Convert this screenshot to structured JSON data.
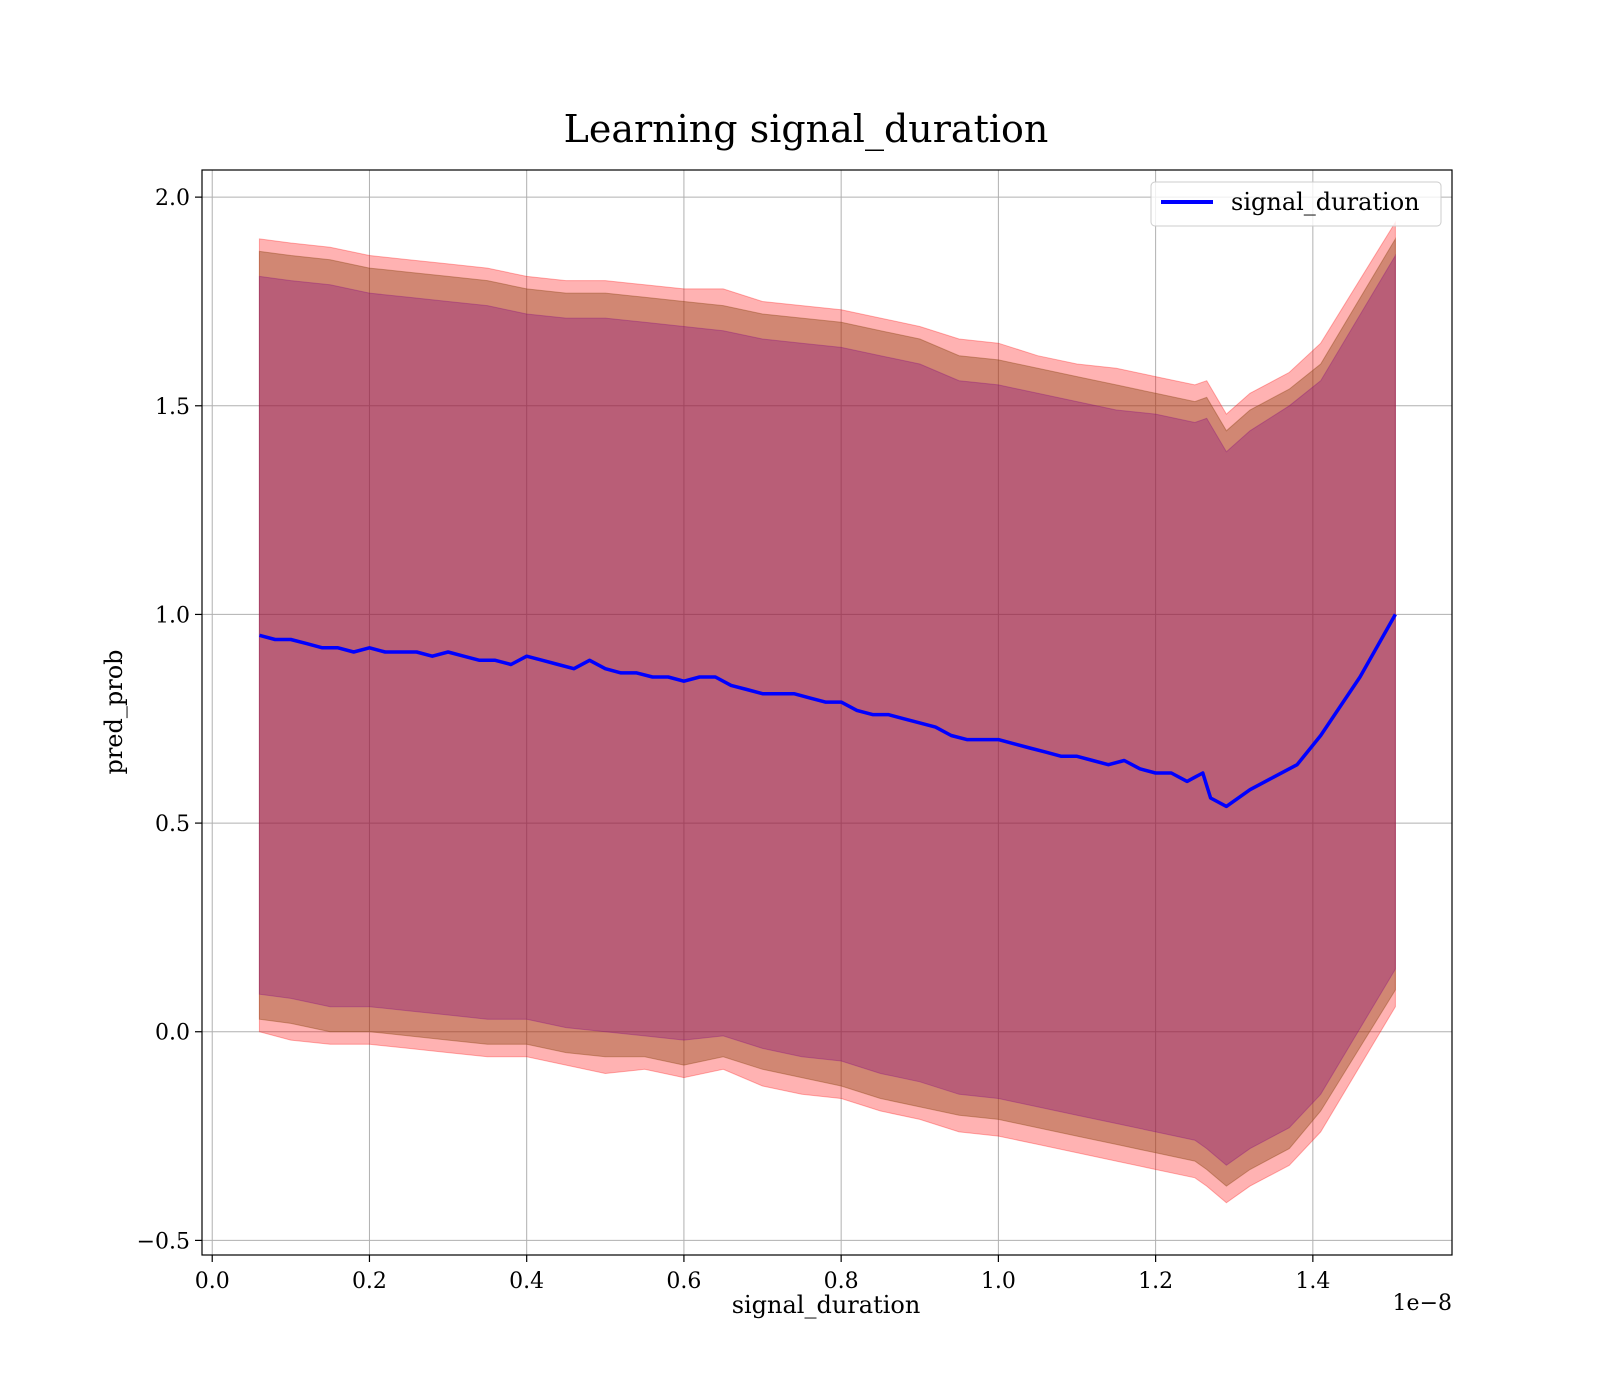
{
  "chart_data": {
    "type": "line",
    "title": "Learning signal_duration",
    "xlabel": "signal_duration",
    "ylabel": "pred_prob",
    "x_offset_text": "1e−8",
    "xlim": [
      -0.013,
      1.577
    ],
    "ylim": [
      -0.535,
      2.065
    ],
    "x_ticks": [
      0.0,
      0.2,
      0.4,
      0.6,
      0.8,
      1.0,
      1.2,
      1.4
    ],
    "x_tick_labels": [
      "0.0",
      "0.2",
      "0.4",
      "0.6",
      "0.8",
      "1.0",
      "1.2",
      "1.4"
    ],
    "y_ticks": [
      -0.5,
      0.0,
      0.5,
      1.0,
      1.5,
      2.0
    ],
    "y_tick_labels": [
      "−0.5",
      "0.0",
      "0.5",
      "1.0",
      "1.5",
      "2.0"
    ],
    "grid": true,
    "legend_position": "top-right",
    "series": [
      {
        "name": "signal_duration",
        "color": "#0000ff",
        "x": [
          0.06,
          0.08,
          0.1,
          0.12,
          0.14,
          0.16,
          0.18,
          0.2,
          0.22,
          0.24,
          0.26,
          0.28,
          0.3,
          0.32,
          0.34,
          0.36,
          0.38,
          0.4,
          0.42,
          0.44,
          0.46,
          0.48,
          0.5,
          0.52,
          0.54,
          0.56,
          0.58,
          0.6,
          0.62,
          0.64,
          0.66,
          0.68,
          0.7,
          0.72,
          0.74,
          0.76,
          0.78,
          0.8,
          0.82,
          0.84,
          0.86,
          0.88,
          0.9,
          0.92,
          0.94,
          0.96,
          0.98,
          1.0,
          1.02,
          1.04,
          1.06,
          1.08,
          1.1,
          1.12,
          1.14,
          1.16,
          1.18,
          1.2,
          1.22,
          1.24,
          1.25,
          1.26,
          1.27,
          1.29,
          1.32,
          1.35,
          1.38,
          1.41,
          1.46,
          1.505
        ],
        "y": [
          0.95,
          0.94,
          0.94,
          0.93,
          0.92,
          0.92,
          0.91,
          0.92,
          0.91,
          0.91,
          0.91,
          0.9,
          0.91,
          0.9,
          0.89,
          0.89,
          0.88,
          0.9,
          0.89,
          0.88,
          0.87,
          0.89,
          0.87,
          0.86,
          0.86,
          0.85,
          0.85,
          0.84,
          0.85,
          0.85,
          0.83,
          0.82,
          0.81,
          0.81,
          0.81,
          0.8,
          0.79,
          0.79,
          0.77,
          0.76,
          0.76,
          0.75,
          0.74,
          0.73,
          0.71,
          0.7,
          0.7,
          0.7,
          0.69,
          0.68,
          0.67,
          0.66,
          0.66,
          0.65,
          0.64,
          0.65,
          0.63,
          0.62,
          0.62,
          0.6,
          0.61,
          0.62,
          0.56,
          0.54,
          0.58,
          0.61,
          0.64,
          0.71,
          0.85,
          1.0
        ]
      }
    ],
    "bands": [
      {
        "fill": "#ff0000",
        "opacity": 0.3,
        "x": [
          0.06,
          0.1,
          0.15,
          0.2,
          0.25,
          0.3,
          0.35,
          0.4,
          0.45,
          0.5,
          0.55,
          0.6,
          0.65,
          0.7,
          0.75,
          0.8,
          0.85,
          0.9,
          0.95,
          1.0,
          1.05,
          1.1,
          1.15,
          1.2,
          1.25,
          1.265,
          1.29,
          1.32,
          1.37,
          1.41,
          1.505
        ],
        "upper": [
          1.9,
          1.89,
          1.88,
          1.86,
          1.85,
          1.84,
          1.83,
          1.81,
          1.8,
          1.8,
          1.79,
          1.78,
          1.78,
          1.75,
          1.74,
          1.73,
          1.71,
          1.69,
          1.66,
          1.65,
          1.62,
          1.6,
          1.59,
          1.57,
          1.55,
          1.56,
          1.48,
          1.53,
          1.58,
          1.65,
          1.94
        ],
        "lower": [
          0.0,
          -0.02,
          -0.03,
          -0.03,
          -0.04,
          -0.05,
          -0.06,
          -0.06,
          -0.08,
          -0.1,
          -0.09,
          -0.11,
          -0.09,
          -0.13,
          -0.15,
          -0.16,
          -0.19,
          -0.21,
          -0.24,
          -0.25,
          -0.27,
          -0.29,
          -0.31,
          -0.33,
          -0.35,
          -0.37,
          -0.41,
          -0.37,
          -0.32,
          -0.24,
          0.06
        ]
      },
      {
        "fill": "#8b4513",
        "opacity": 0.4,
        "x": [
          0.06,
          0.1,
          0.15,
          0.2,
          0.25,
          0.3,
          0.35,
          0.4,
          0.45,
          0.5,
          0.55,
          0.6,
          0.65,
          0.7,
          0.75,
          0.8,
          0.85,
          0.9,
          0.95,
          1.0,
          1.05,
          1.1,
          1.15,
          1.2,
          1.25,
          1.265,
          1.29,
          1.32,
          1.37,
          1.41,
          1.505
        ],
        "upper": [
          1.87,
          1.86,
          1.85,
          1.83,
          1.82,
          1.81,
          1.8,
          1.78,
          1.77,
          1.77,
          1.76,
          1.75,
          1.74,
          1.72,
          1.71,
          1.7,
          1.68,
          1.66,
          1.62,
          1.61,
          1.59,
          1.57,
          1.55,
          1.53,
          1.51,
          1.52,
          1.44,
          1.49,
          1.54,
          1.6,
          1.9
        ],
        "lower": [
          0.03,
          0.02,
          0.0,
          0.0,
          -0.01,
          -0.02,
          -0.03,
          -0.03,
          -0.05,
          -0.06,
          -0.06,
          -0.08,
          -0.06,
          -0.09,
          -0.11,
          -0.13,
          -0.16,
          -0.18,
          -0.2,
          -0.21,
          -0.23,
          -0.25,
          -0.27,
          -0.29,
          -0.31,
          -0.33,
          -0.37,
          -0.33,
          -0.28,
          -0.19,
          0.1
        ]
      },
      {
        "fill": "#800080",
        "opacity": 0.3,
        "x": [
          0.06,
          0.1,
          0.15,
          0.2,
          0.25,
          0.3,
          0.35,
          0.4,
          0.45,
          0.5,
          0.55,
          0.6,
          0.65,
          0.7,
          0.75,
          0.8,
          0.85,
          0.9,
          0.95,
          1.0,
          1.05,
          1.1,
          1.15,
          1.2,
          1.25,
          1.265,
          1.29,
          1.32,
          1.37,
          1.41,
          1.505
        ],
        "upper": [
          1.81,
          1.8,
          1.79,
          1.77,
          1.76,
          1.75,
          1.74,
          1.72,
          1.71,
          1.71,
          1.7,
          1.69,
          1.68,
          1.66,
          1.65,
          1.64,
          1.62,
          1.6,
          1.56,
          1.55,
          1.53,
          1.51,
          1.49,
          1.48,
          1.46,
          1.47,
          1.39,
          1.44,
          1.5,
          1.56,
          1.86
        ],
        "lower": [
          0.09,
          0.08,
          0.06,
          0.06,
          0.05,
          0.04,
          0.03,
          0.03,
          0.01,
          0.0,
          -0.01,
          -0.02,
          -0.01,
          -0.04,
          -0.06,
          -0.07,
          -0.1,
          -0.12,
          -0.15,
          -0.16,
          -0.18,
          -0.2,
          -0.22,
          -0.24,
          -0.26,
          -0.28,
          -0.32,
          -0.28,
          -0.23,
          -0.15,
          0.15
        ]
      }
    ]
  }
}
